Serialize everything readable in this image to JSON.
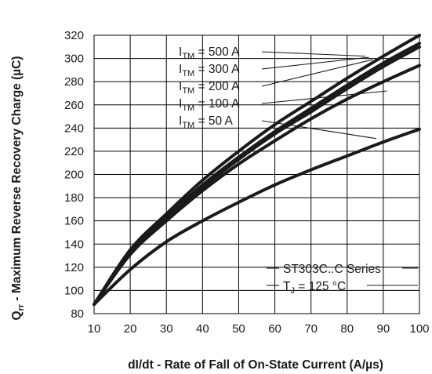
{
  "chart_data": {
    "type": "line",
    "xlabel": "dI/dt - Rate of Fall of On-State Current (A/µs)",
    "ylabel": "Q",
    "ylabel_sub": "rr",
    "ylabel_rest": " - Maximum Reverse Recovery Charge (µC)",
    "xlim": [
      10,
      100
    ],
    "ylim": [
      80,
      320
    ],
    "x_ticks": [
      10,
      20,
      30,
      40,
      50,
      60,
      70,
      80,
      90,
      100
    ],
    "y_ticks": [
      80,
      100,
      120,
      140,
      160,
      180,
      200,
      220,
      240,
      260,
      280,
      300,
      320
    ],
    "grid": true,
    "x": [
      10,
      20,
      30,
      40,
      50,
      60,
      70,
      80,
      90,
      100
    ],
    "series": [
      {
        "name": "I",
        "name_sub": "TM",
        "name_rest": " = 500 A",
        "values": [
          88,
          135,
          166,
          195,
          220,
          243,
          263,
          283,
          302,
          320
        ]
      },
      {
        "name": "I",
        "name_sub": "TM",
        "name_rest": " = 300 A",
        "values": [
          88,
          133,
          163,
          191,
          215,
          237,
          257,
          277,
          296,
          313
        ]
      },
      {
        "name": "I",
        "name_sub": "TM",
        "name_rest": " = 200 A",
        "values": [
          88,
          132,
          161,
          189,
          213,
          235,
          254,
          274,
          293,
          310
        ]
      },
      {
        "name": "I",
        "name_sub": "TM",
        "name_rest": " = 100 A",
        "values": [
          88,
          131,
          160,
          186,
          209,
          229,
          248,
          265,
          280,
          294
        ]
      },
      {
        "name": "I",
        "name_sub": "TM",
        "name_rest": " = 50 A",
        "values": [
          88,
          118,
          142,
          160,
          176,
          191,
          204,
          216,
          228,
          239
        ]
      }
    ],
    "annotation": {
      "line1": "ST303C..C Series",
      "line2_main": "T",
      "line2_sub": "J",
      "line2_rest": " = 125 °C"
    }
  }
}
